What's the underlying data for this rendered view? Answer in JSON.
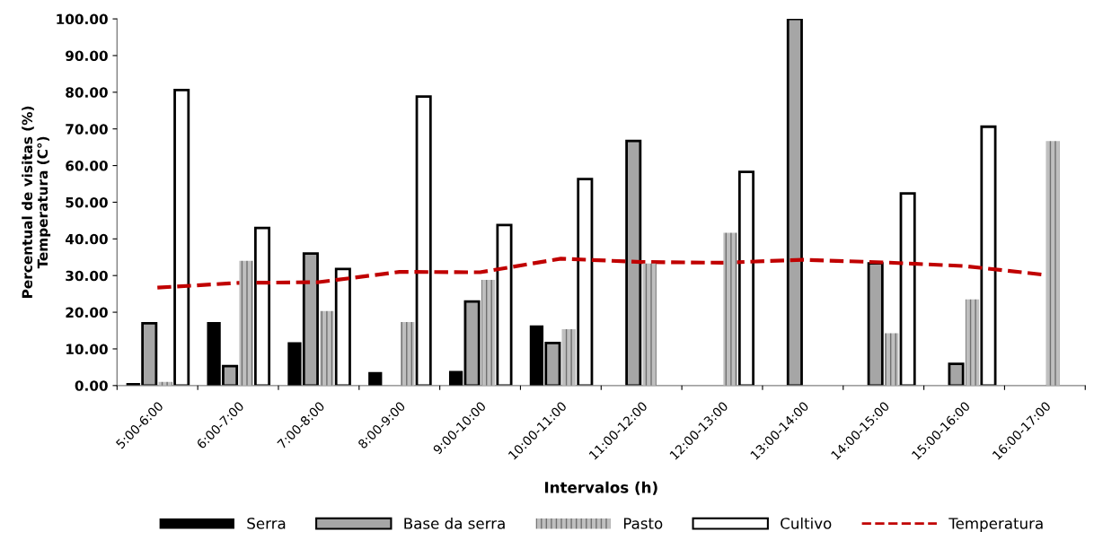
{
  "chart_data": {
    "type": "bar",
    "xlabel": "Intervalos (h)",
    "ylabel": "Percentual de visitas (%)\nTemperatura (C°)",
    "categories": [
      "5:00-6:00",
      "6:00-7:00",
      "7:00-8:00",
      "8:00-9:00",
      "9:00-10:00",
      "10:00-11:00",
      "11:00-12:00",
      "12:00-13:00",
      "13:00-14:00",
      "14:00-15:00",
      "15:00-16:00",
      "16:00-17:00"
    ],
    "series": [
      {
        "name": "Serra",
        "color": "#000000",
        "values": [
          0.7,
          17.3,
          11.8,
          3.7,
          4.0,
          16.4,
          null,
          null,
          null,
          null,
          null,
          null
        ]
      },
      {
        "name": "Base da serra",
        "color": "#a6a6a6",
        "values": [
          17.0,
          5.3,
          36.0,
          null,
          22.9,
          11.6,
          66.7,
          null,
          100.0,
          33.3,
          5.9,
          null
        ]
      },
      {
        "name": "Pasto",
        "color": "#bfbfbf",
        "values": [
          1.0,
          34.0,
          20.3,
          17.3,
          28.8,
          15.4,
          33.3,
          41.7,
          null,
          14.3,
          23.5,
          66.7
        ]
      },
      {
        "name": "Cultivo",
        "color": "#ffffff",
        "values": [
          80.6,
          43.0,
          31.8,
          78.8,
          43.8,
          56.3,
          null,
          58.3,
          null,
          52.4,
          70.6,
          null
        ]
      },
      {
        "name": "Temperatura",
        "type": "line",
        "color": "#c00000",
        "line_style": "dashed",
        "values": [
          26.7,
          28.0,
          28.2,
          31.0,
          30.9,
          34.6,
          33.7,
          33.5,
          34.3,
          33.6,
          32.6,
          30.2
        ]
      }
    ],
    "ylim": [
      0,
      100
    ],
    "yticks": [
      {
        "value": 0,
        "label": "0.00"
      },
      {
        "value": 10,
        "label": "10.00"
      },
      {
        "value": 20,
        "label": "20.00"
      },
      {
        "value": 30,
        "label": "30.00"
      },
      {
        "value": 40,
        "label": "40.00"
      },
      {
        "value": 50,
        "label": "50.00"
      },
      {
        "value": 60,
        "label": "60.00"
      },
      {
        "value": 70,
        "label": "70.00"
      },
      {
        "value": 80,
        "label": "80.00"
      },
      {
        "value": 90,
        "label": "90.00"
      },
      {
        "value": 100,
        "label": "100.00"
      }
    ],
    "grid": false,
    "legend": "bottom"
  }
}
